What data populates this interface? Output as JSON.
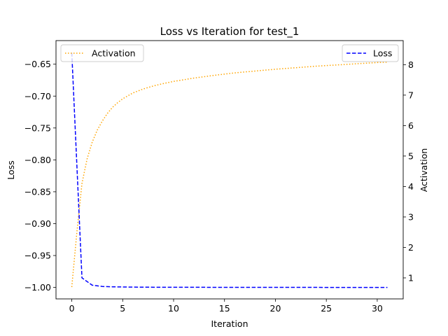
{
  "chart_data": {
    "type": "line",
    "title": "Loss vs Iteration for test_1",
    "xlabel": "Iteration",
    "ylabel_left": "Loss",
    "ylabel_right": "Activation",
    "xlim": [
      -1.55,
      32.55
    ],
    "ylim_left": [
      -1.018,
      -0.613
    ],
    "ylim_right": [
      0.31,
      8.79
    ],
    "x_ticks": [
      0,
      5,
      10,
      15,
      20,
      25,
      30
    ],
    "y_ticks_left": [
      -1.0,
      -0.95,
      -0.9,
      -0.85,
      -0.8,
      -0.75,
      -0.7,
      -0.65
    ],
    "y_ticks_right": [
      1,
      2,
      3,
      4,
      5,
      6,
      7,
      8
    ],
    "grid": false,
    "legends": [
      {
        "placement": "upper-left",
        "axis": "right",
        "entries": [
          "Activation"
        ]
      },
      {
        "placement": "upper-right",
        "axis": "left",
        "entries": [
          "Loss"
        ]
      }
    ],
    "series": [
      {
        "name": "Loss",
        "axis": "left",
        "style": "dashed",
        "color": "#0000ff",
        "x": [
          0,
          1,
          2,
          3,
          4,
          5,
          6,
          7,
          8,
          9,
          10,
          11,
          12,
          13,
          14,
          15,
          16,
          17,
          18,
          19,
          20,
          21,
          22,
          23,
          24,
          25,
          26,
          27,
          28,
          29,
          30,
          31
        ],
        "y": [
          -0.632,
          -0.985,
          -0.9965,
          -0.9985,
          -0.999,
          -0.9993,
          -0.9995,
          -0.9996,
          -0.9997,
          -0.9997,
          -0.9998,
          -0.9998,
          -0.9998,
          -0.9998,
          -0.9999,
          -0.9999,
          -0.9999,
          -0.9999,
          -0.9999,
          -0.9999,
          -0.9999,
          -0.9999,
          -0.9999,
          -0.9999,
          -0.9999,
          -1.0,
          -1.0,
          -1.0,
          -1.0,
          -1.0,
          -1.0,
          -1.0
        ]
      },
      {
        "name": "Activation",
        "axis": "right",
        "style": "dotted",
        "color": "#ffa500",
        "x": [
          0,
          0.5,
          1,
          1.5,
          2,
          2.5,
          3,
          3.5,
          4,
          4.5,
          5,
          6,
          7,
          8,
          9,
          10,
          12,
          14,
          16,
          18,
          20,
          22,
          24,
          26,
          28,
          30,
          31
        ],
        "y": [
          0.7,
          2.5,
          4.1,
          4.9,
          5.45,
          5.85,
          6.15,
          6.4,
          6.6,
          6.75,
          6.88,
          7.07,
          7.2,
          7.3,
          7.38,
          7.45,
          7.56,
          7.65,
          7.73,
          7.79,
          7.85,
          7.9,
          7.95,
          7.99,
          8.03,
          8.07,
          8.08
        ]
      }
    ]
  }
}
